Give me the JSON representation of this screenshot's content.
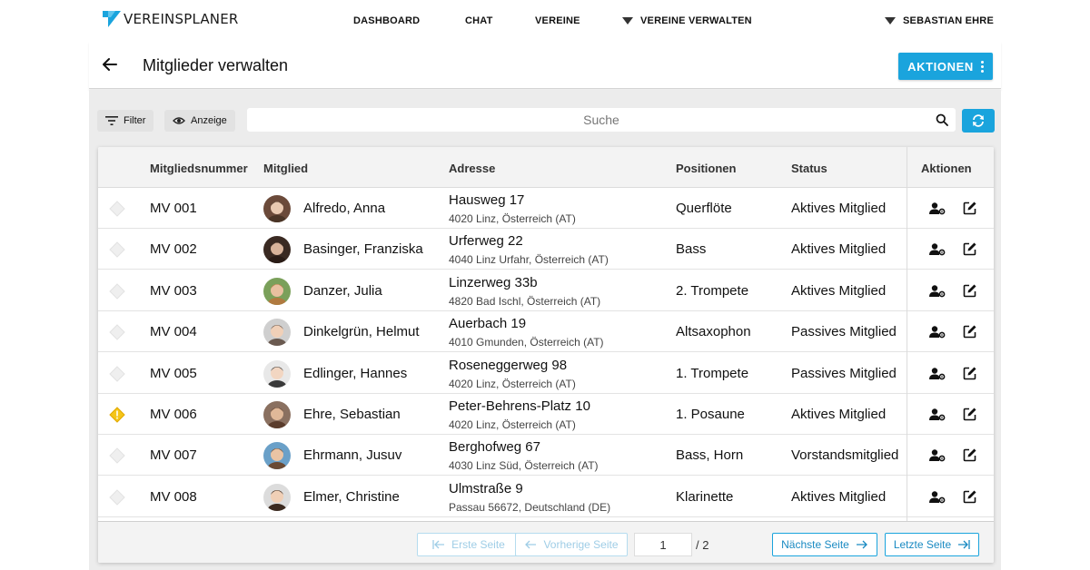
{
  "brand": {
    "name": "VEREINSPLANER",
    "color": "#1aa4dd"
  },
  "nav": {
    "dashboard": "DASHBOARD",
    "chat": "CHAT",
    "vereine": "VEREINE",
    "vereine_verwalten": "VEREINE VERWALTEN",
    "user": "SEBASTIAN EHRE"
  },
  "header": {
    "title": "Mitglieder verwalten",
    "actions_label": "AKTIONEN"
  },
  "toolbar": {
    "filter_label": "Filter",
    "anzeige_label": "Anzeige",
    "search_placeholder": "Suche"
  },
  "table": {
    "columns": {
      "number": "Mitgliedsnummer",
      "member": "Mitglied",
      "address": "Adresse",
      "positions": "Positionen",
      "status": "Status",
      "actions": "Aktionen"
    },
    "rows": [
      {
        "number": "MV 001",
        "name": "Alfredo, Anna",
        "street": "Hausweg 17",
        "city": "4020 Linz, Österreich (AT)",
        "position": "Querflöte",
        "status": "Aktives Mitglied",
        "warning": false
      },
      {
        "number": "MV 002",
        "name": "Basinger, Franziska",
        "street": "Urferweg 22",
        "city": "4040 Linz Urfahr, Österreich (AT)",
        "position": "Bass",
        "status": "Aktives Mitglied",
        "warning": false
      },
      {
        "number": "MV 003",
        "name": "Danzer, Julia",
        "street": "Linzerweg 33b",
        "city": "4820 Bad Ischl, Österreich (AT)",
        "position": "2. Trompete",
        "status": "Aktives Mitglied",
        "warning": false
      },
      {
        "number": "MV 004",
        "name": "Dinkelgrün, Helmut",
        "street": "Auerbach 19",
        "city": "4010 Gmunden, Österreich (AT)",
        "position": "Altsaxophon",
        "status": "Passives Mitglied",
        "warning": false
      },
      {
        "number": "MV 005",
        "name": "Edlinger, Hannes",
        "street": "Roseneggerweg 98",
        "city": "4020 Linz, Österreich (AT)",
        "position": "1. Trompete",
        "status": "Passives Mitglied",
        "warning": false
      },
      {
        "number": "MV 006",
        "name": "Ehre, Sebastian",
        "street": "Peter-Behrens-Platz 10",
        "city": "4020 Linz, Österreich (AT)",
        "position": "1. Posaune",
        "status": "Aktives Mitglied",
        "warning": true
      },
      {
        "number": "MV 007",
        "name": "Ehrmann, Jusuv",
        "street": "Berghofweg 67",
        "city": "4030 Linz Süd, Österreich (AT)",
        "position": "Bass, Horn",
        "status": "Vorstandsmitglied",
        "warning": false
      },
      {
        "number": "MV 008",
        "name": "Elmer, Christine",
        "street": "Ulmstraße 9",
        "city": "Passau 56672, Deutschland (DE)",
        "position": "Klarinette",
        "status": "Aktives Mitglied",
        "warning": false
      }
    ]
  },
  "pagination": {
    "first": "Erste Seite",
    "prev": "Vorherige Seite",
    "current_page": "1",
    "total": "/  2",
    "next": "Nächste Seite",
    "last": "Letzte Seite"
  }
}
